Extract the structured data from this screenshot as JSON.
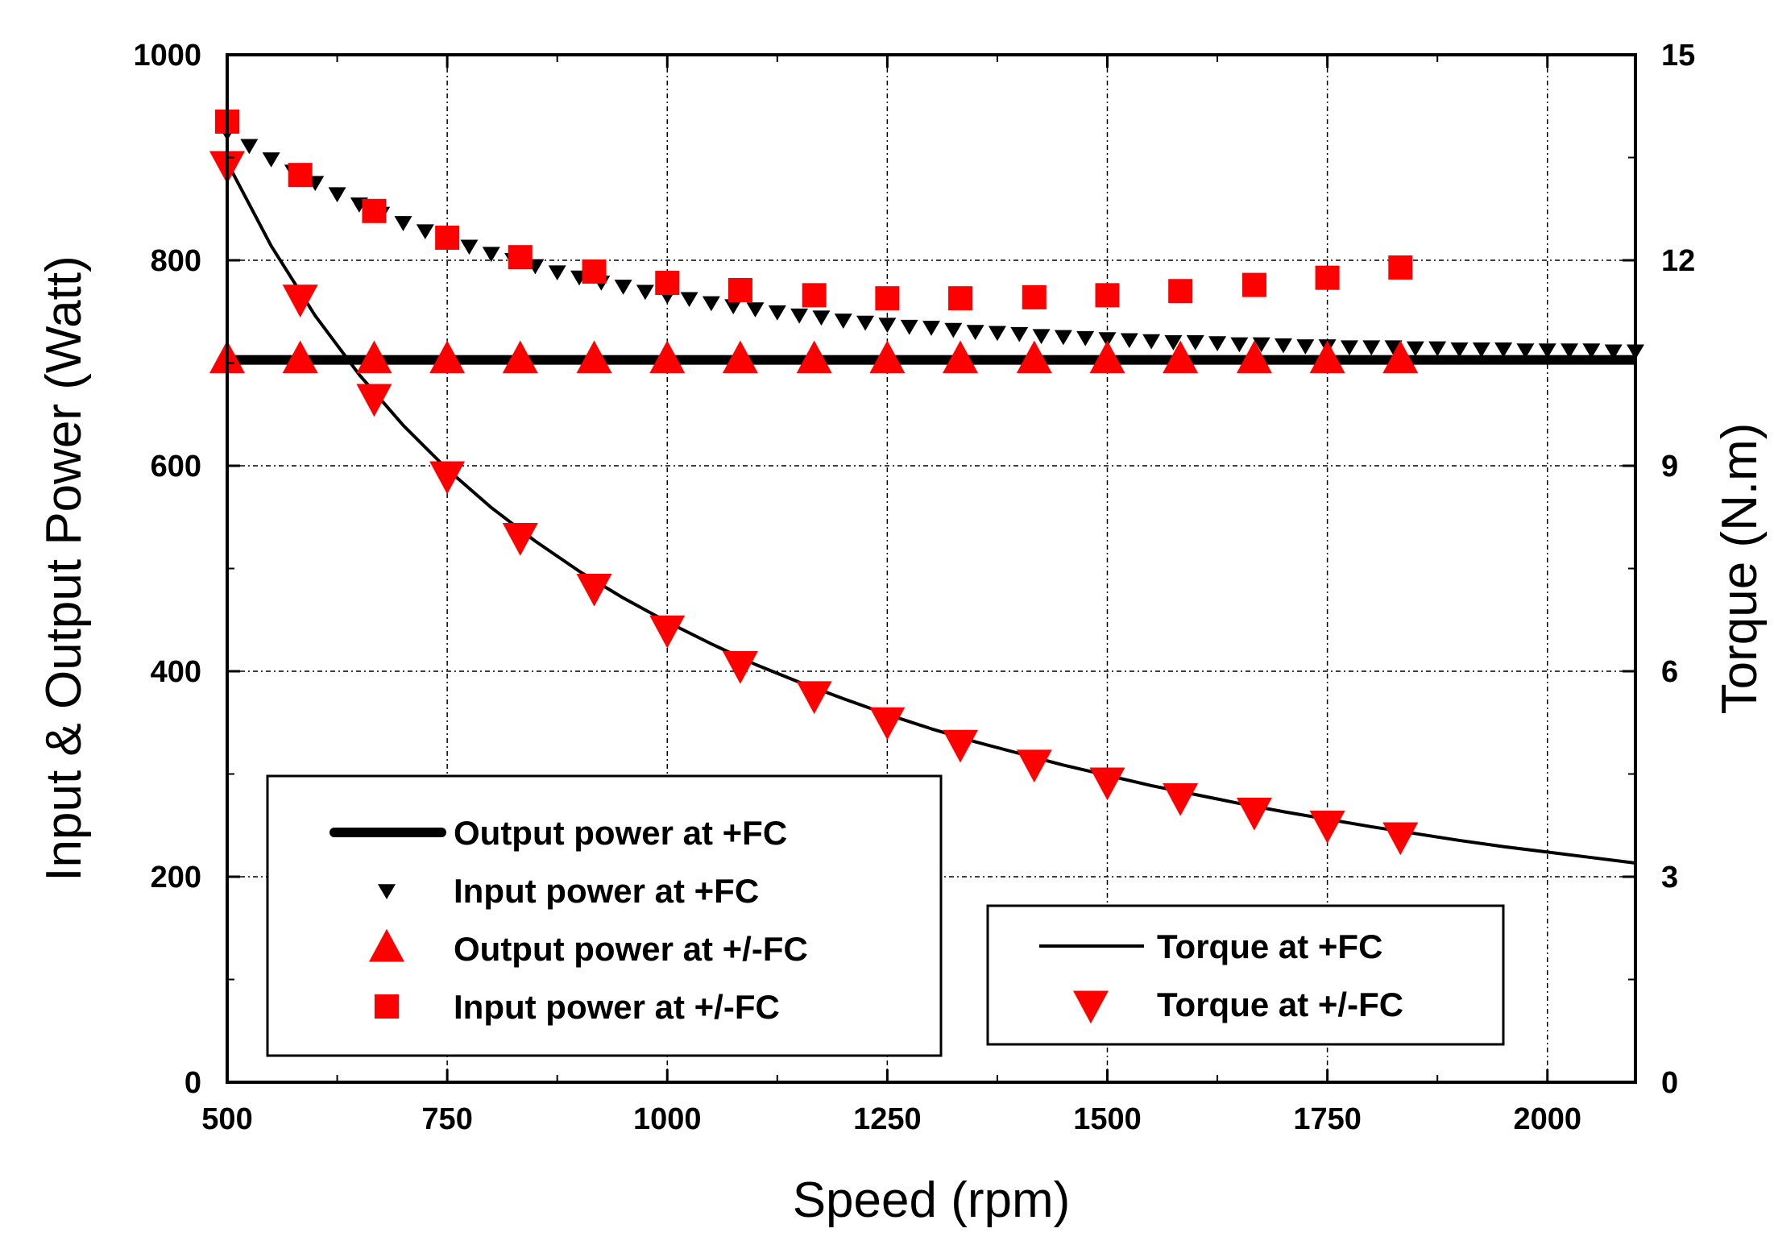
{
  "chart_data": {
    "type": "line",
    "xlabel": "Speed (rpm)",
    "ylabel": "Input & Output Power (Watt)",
    "y2label": "Torque (N.m)",
    "xlim": [
      500,
      2100
    ],
    "ylim": [
      0,
      1000
    ],
    "y2lim": [
      0,
      15
    ],
    "grid": true,
    "xticks": [
      500,
      750,
      1000,
      1250,
      1500,
      1750,
      2000
    ],
    "yticks": [
      0,
      200,
      400,
      600,
      800,
      1000
    ],
    "y2ticks": [
      0,
      3,
      6,
      9,
      12,
      15
    ],
    "series": [
      {
        "name": "Output power at +FC",
        "axis": "left",
        "style": "thick-line",
        "color": "#000000",
        "x": [
          500,
          2100
        ],
        "y": [
          703,
          703
        ]
      },
      {
        "name": "Input power at +FC",
        "axis": "left",
        "style": "small-down-triangle",
        "color": "#000000",
        "x": [
          500,
          525,
          550,
          575,
          600,
          625,
          650,
          675,
          700,
          725,
          750,
          775,
          800,
          825,
          850,
          875,
          900,
          925,
          950,
          975,
          1000,
          1025,
          1050,
          1075,
          1100,
          1125,
          1150,
          1175,
          1200,
          1225,
          1250,
          1275,
          1300,
          1325,
          1350,
          1375,
          1400,
          1425,
          1450,
          1475,
          1500,
          1525,
          1550,
          1575,
          1600,
          1625,
          1650,
          1675,
          1700,
          1725,
          1750,
          1775,
          1800,
          1825,
          1850,
          1875,
          1900,
          1925,
          1950,
          1975,
          2000,
          2025,
          2050,
          2075,
          2100
        ],
        "y": [
          925,
          912,
          899,
          887,
          876,
          865,
          855,
          846,
          837,
          829,
          821,
          814,
          807,
          801,
          795,
          789,
          784,
          779,
          775,
          770,
          766,
          763,
          759,
          756,
          753,
          750,
          747,
          745,
          742,
          740,
          738,
          736,
          735,
          733,
          731,
          730,
          729,
          727,
          726,
          725,
          724,
          723,
          722,
          721,
          721,
          720,
          719,
          719,
          718,
          717,
          717,
          716,
          716,
          716,
          715,
          715,
          714,
          714,
          714,
          713,
          713,
          713,
          713,
          712,
          712
        ]
      },
      {
        "name": "Output power at +/-FC",
        "axis": "left",
        "style": "up-triangle",
        "color": "#ff0000",
        "x": [
          500,
          583,
          667,
          750,
          833,
          917,
          1000,
          1083,
          1167,
          1250,
          1333,
          1417,
          1500,
          1583,
          1667,
          1750,
          1833
        ],
        "y": [
          703,
          703,
          703,
          703,
          703,
          703,
          703,
          703,
          703,
          703,
          703,
          703,
          703,
          703,
          703,
          703,
          703
        ]
      },
      {
        "name": "Input power at +/-FC",
        "axis": "left",
        "style": "square",
        "color": "#ff0000",
        "x": [
          500,
          583,
          667,
          750,
          833,
          917,
          1000,
          1083,
          1167,
          1250,
          1333,
          1417,
          1500,
          1583,
          1667,
          1750,
          1833
        ],
        "y": [
          935,
          883,
          848,
          822,
          803,
          789,
          778,
          771,
          766,
          763,
          763,
          764,
          766,
          770,
          776,
          783,
          793
        ]
      },
      {
        "name": "Torque at +FC",
        "axis": "right",
        "style": "thin-line",
        "color": "#000000",
        "x": [
          500,
          550,
          600,
          650,
          700,
          750,
          800,
          850,
          900,
          950,
          1000,
          1050,
          1100,
          1150,
          1200,
          1250,
          1300,
          1350,
          1400,
          1450,
          1500,
          1550,
          1600,
          1650,
          1700,
          1750,
          1800,
          1850,
          1900,
          1950,
          2000,
          2050,
          2100
        ],
        "y": [
          13.43,
          12.21,
          11.19,
          10.33,
          9.59,
          8.95,
          8.39,
          7.9,
          7.46,
          7.07,
          6.72,
          6.4,
          6.1,
          5.84,
          5.6,
          5.37,
          5.16,
          4.97,
          4.8,
          4.63,
          4.48,
          4.33,
          4.2,
          4.07,
          3.95,
          3.84,
          3.73,
          3.63,
          3.53,
          3.44,
          3.36,
          3.28,
          3.2
        ]
      },
      {
        "name": "Torque at +/-FC",
        "axis": "right",
        "style": "down-triangle",
        "color": "#ff0000",
        "x": [
          500,
          583,
          667,
          750,
          833,
          917,
          1000,
          1083,
          1167,
          1250,
          1333,
          1417,
          1500,
          1583,
          1667,
          1750,
          1833
        ],
        "y": [
          13.4,
          11.45,
          10.0,
          8.87,
          7.97,
          7.23,
          6.62,
          6.1,
          5.66,
          5.28,
          4.95,
          4.66,
          4.4,
          4.17,
          3.96,
          3.77,
          3.6
        ]
      }
    ],
    "legends": [
      {
        "position": "bottom-left",
        "entries": [
          "Output power at +FC",
          "Input power at +FC",
          "Output power at +/-FC",
          "Input power at +/-FC"
        ]
      },
      {
        "position": "bottom-right",
        "entries": [
          "Torque at +FC",
          "Torque at +/-FC"
        ]
      }
    ]
  }
}
